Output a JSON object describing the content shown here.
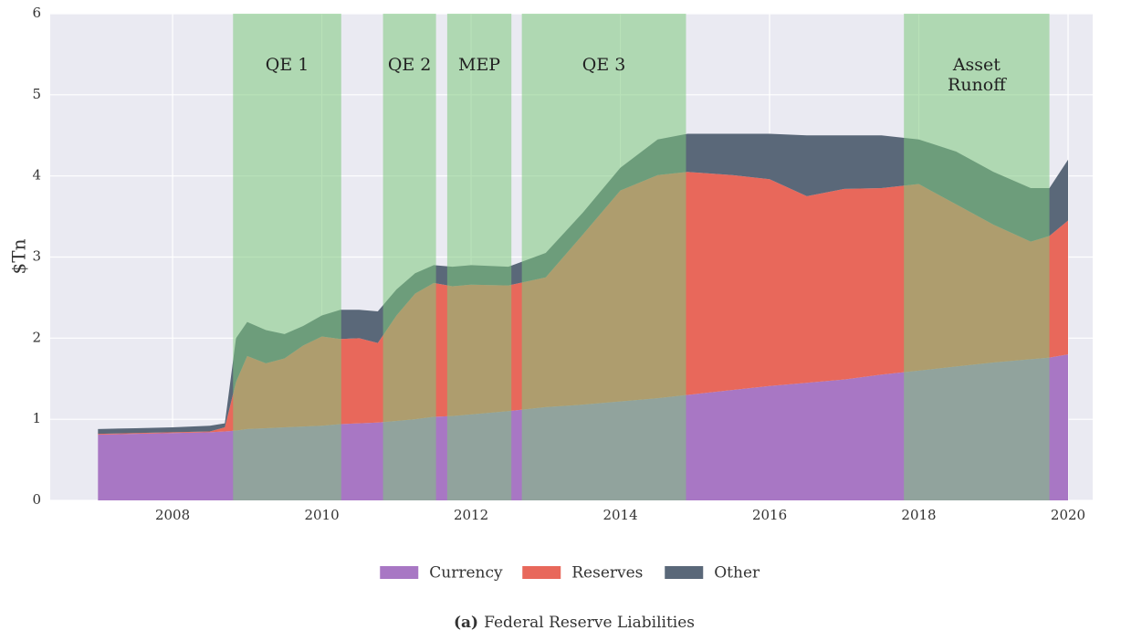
{
  "chart_data": {
    "type": "stacked_area",
    "ylabel": "$Tn",
    "caption_label": "(a)",
    "caption": "Federal Reserve Liabilities",
    "x": [
      2007.0,
      2007.5,
      2008.0,
      2008.5,
      2008.7,
      2008.85,
      2009.0,
      2009.25,
      2009.5,
      2009.75,
      2010.0,
      2010.25,
      2010.5,
      2010.75,
      2011.0,
      2011.25,
      2011.5,
      2011.75,
      2012.0,
      2012.5,
      2013.0,
      2013.5,
      2014.0,
      2014.5,
      2014.9,
      2015.5,
      2016.0,
      2016.5,
      2017.0,
      2017.5,
      2018.0,
      2018.5,
      2019.0,
      2019.5,
      2019.75,
      2020.0
    ],
    "series": [
      {
        "name": "Currency",
        "color": "#a877c4",
        "values": [
          0.81,
          0.82,
          0.83,
          0.84,
          0.85,
          0.86,
          0.88,
          0.89,
          0.9,
          0.91,
          0.92,
          0.94,
          0.95,
          0.96,
          0.98,
          1.0,
          1.03,
          1.04,
          1.06,
          1.1,
          1.15,
          1.18,
          1.22,
          1.26,
          1.3,
          1.36,
          1.41,
          1.45,
          1.49,
          1.55,
          1.6,
          1.65,
          1.7,
          1.74,
          1.76,
          1.8
        ]
      },
      {
        "name": "Reserves",
        "color": "#e8685b",
        "values": [
          0.01,
          0.01,
          0.01,
          0.01,
          0.05,
          0.6,
          0.9,
          0.8,
          0.85,
          1.0,
          1.1,
          1.05,
          1.05,
          0.98,
          1.3,
          1.55,
          1.65,
          1.6,
          1.6,
          1.55,
          1.6,
          2.1,
          2.6,
          2.75,
          2.75,
          2.65,
          2.55,
          2.3,
          2.35,
          2.3,
          2.3,
          2.0,
          1.7,
          1.45,
          1.5,
          1.65
        ]
      },
      {
        "name": "Other",
        "color": "#5a6879",
        "values": [
          0.06,
          0.06,
          0.06,
          0.07,
          0.05,
          0.54,
          0.42,
          0.41,
          0.3,
          0.24,
          0.26,
          0.36,
          0.35,
          0.39,
          0.32,
          0.25,
          0.22,
          0.24,
          0.24,
          0.23,
          0.3,
          0.27,
          0.28,
          0.44,
          0.47,
          0.51,
          0.56,
          0.75,
          0.66,
          0.65,
          0.55,
          0.65,
          0.65,
          0.66,
          0.59,
          0.75
        ]
      }
    ],
    "regions": [
      {
        "start": 2008.81,
        "end": 2010.26,
        "label": [
          "QE 1"
        ]
      },
      {
        "start": 2010.82,
        "end": 2011.53,
        "label": [
          "QE 2"
        ]
      },
      {
        "start": 2011.68,
        "end": 2012.54,
        "label": [
          "MEP"
        ]
      },
      {
        "start": 2012.68,
        "end": 2014.88,
        "label": [
          "QE 3"
        ]
      },
      {
        "start": 2017.8,
        "end": 2019.75,
        "label": [
          "Asset",
          "Runoff"
        ]
      }
    ],
    "region_color": "#7ec87e",
    "xlim": [
      2006.36,
      2020.33
    ],
    "xticks": [
      2008,
      2010,
      2012,
      2014,
      2016,
      2018,
      2020
    ],
    "ylim": [
      0,
      6
    ],
    "yticks": [
      0,
      1,
      2,
      3,
      4,
      5,
      6
    ],
    "grid": true,
    "legend": "bottom"
  }
}
